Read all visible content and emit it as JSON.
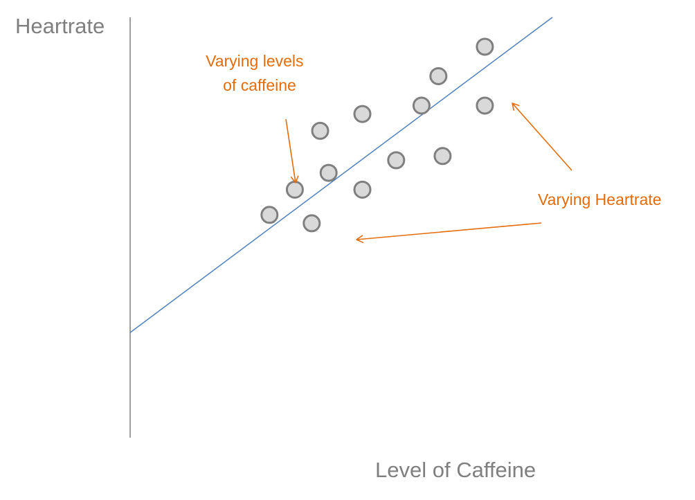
{
  "chart_data": {
    "type": "scatter",
    "ylabel": "Heartrate",
    "xlabel": "Level of Caffeine",
    "axes_style": "x and y axis lines only, no ticks, no grid",
    "grid": false,
    "xlim": [
      0,
      10
    ],
    "ylim": [
      0,
      10
    ],
    "points": [
      {
        "x": 3.3,
        "y": 5.3
      },
      {
        "x": 3.9,
        "y": 5.9
      },
      {
        "x": 4.3,
        "y": 5.1
      },
      {
        "x": 4.7,
        "y": 6.3
      },
      {
        "x": 4.5,
        "y": 7.3
      },
      {
        "x": 5.5,
        "y": 5.9
      },
      {
        "x": 5.5,
        "y": 7.7
      },
      {
        "x": 6.3,
        "y": 6.6
      },
      {
        "x": 6.9,
        "y": 7.9
      },
      {
        "x": 7.3,
        "y": 8.6
      },
      {
        "x": 7.4,
        "y": 6.7
      },
      {
        "x": 8.4,
        "y": 7.9
      },
      {
        "x": 8.4,
        "y": 9.3
      }
    ],
    "trend_line": {
      "x": [
        0,
        10
      ],
      "y": [
        2.5,
        10
      ]
    },
    "annotations": [
      {
        "lines": [
          "Varying levels",
          "of caffeine"
        ],
        "pointing_to": "points near the low end of the trend line"
      },
      {
        "lines": [
          "Varying Heartrate"
        ],
        "pointing_to": "points spread above and below the trend line"
      }
    ],
    "colors": {
      "axis": "#7f7f7f",
      "axis_title": "#7f7f7f",
      "trend_line": "#4f81bd",
      "point_fill": "#d9d9d9",
      "point_stroke": "#7f7f7f",
      "annotation": "#e46c0a"
    }
  }
}
